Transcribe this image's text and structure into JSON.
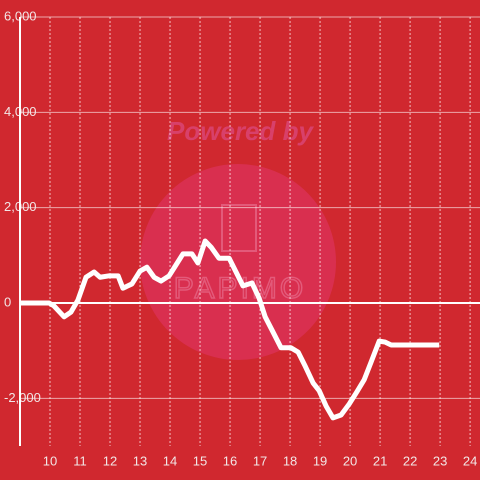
{
  "chart_data": {
    "type": "line",
    "watermark": [
      "Powered by",
      "PAPIMO"
    ],
    "x": [
      9.0,
      9.97,
      10.13,
      10.47,
      10.7,
      10.93,
      11.2,
      11.47,
      11.67,
      11.97,
      12.27,
      12.43,
      12.73,
      13.0,
      13.23,
      13.47,
      13.7,
      13.97,
      14.2,
      14.43,
      14.73,
      14.93,
      15.17,
      15.37,
      15.63,
      15.97,
      16.2,
      16.43,
      16.73,
      16.97,
      17.17,
      17.4,
      17.7,
      18.03,
      18.27,
      18.5,
      18.77,
      18.97,
      19.2,
      19.43,
      19.7,
      19.97,
      20.23,
      20.47,
      20.7,
      20.97,
      21.17,
      21.37,
      22.97
    ],
    "series": [
      {
        "color": "#ffffff",
        "values": [
          0,
          0,
          -60,
          -290,
          -190,
          60,
          540,
          650,
          540,
          570,
          570,
          310,
          400,
          670,
          750,
          540,
          460,
          570,
          800,
          1030,
          1030,
          840,
          1300,
          1170,
          940,
          940,
          650,
          360,
          420,
          100,
          -290,
          -570,
          -940,
          -940,
          -1030,
          -1320,
          -1680,
          -1840,
          -2160,
          -2410,
          -2350,
          -2120,
          -1860,
          -1610,
          -1240,
          -800,
          -820,
          -880,
          -880
        ]
      }
    ],
    "xlim": [
      9,
      24.33
    ],
    "ylim": [
      -3000,
      6000
    ],
    "xticks": [
      10,
      11,
      12,
      13,
      14,
      15,
      16,
      17,
      18,
      19,
      20,
      21,
      22,
      23,
      24
    ],
    "yticks": [
      {
        "value": -2000,
        "label": "-2,000"
      },
      0,
      {
        "value": 2000,
        "label": "2,000"
      },
      {
        "value": 4000,
        "label": "4,000"
      },
      {
        "value": 6000,
        "label": "6,000"
      }
    ],
    "grid": true
  }
}
